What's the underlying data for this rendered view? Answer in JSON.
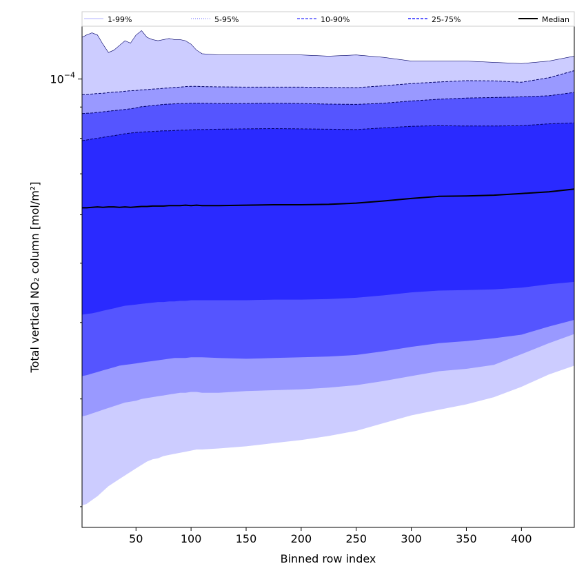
{
  "chart_data": {
    "type": "area",
    "title": "",
    "xlabel": "Binned row index",
    "ylabel": "Total vertical NO₂ column [mol/m²]",
    "x_range": [
      1,
      448
    ],
    "y_scale": "log",
    "y_range": [
      1.85e-05,
      0.000122
    ],
    "x_ticks": [
      50,
      100,
      150,
      200,
      250,
      300,
      350,
      400
    ],
    "x_tick_labels": [
      "50",
      "100",
      "150",
      "200",
      "250",
      "300",
      "350",
      "400"
    ],
    "y_tick_label": "10",
    "y_tick_exponent": "−4",
    "y_tick_value": 0.0001,
    "grid": false,
    "legend_position": "top",
    "x": [
      1,
      5,
      10,
      15,
      20,
      25,
      30,
      35,
      40,
      45,
      50,
      55,
      60,
      65,
      70,
      75,
      80,
      85,
      90,
      95,
      100,
      105,
      110,
      125,
      150,
      175,
      200,
      225,
      250,
      275,
      300,
      325,
      350,
      375,
      400,
      425,
      448
    ],
    "series": [
      {
        "name": "1-99%",
        "color": "#ccccff",
        "upper": [
          0.000117,
          0.000118,
          0.000119,
          0.000118,
          0.000114,
          0.0001105,
          0.0001115,
          0.0001135,
          0.0001155,
          0.0001145,
          0.000118,
          0.00012,
          0.000117,
          0.000116,
          0.0001155,
          0.000116,
          0.0001165,
          0.000116,
          0.000116,
          0.0001155,
          0.000114,
          0.0001115,
          0.00011,
          0.0001095,
          0.0001095,
          0.0001095,
          0.0001095,
          0.000109,
          0.0001095,
          0.0001085,
          0.000107,
          0.000107,
          0.000107,
          0.0001065,
          0.000106,
          0.000107,
          0.000109
        ],
        "lower": [
          2.01e-05,
          2.02e-05,
          2.05e-05,
          2.08e-05,
          2.12e-05,
          2.16e-05,
          2.19e-05,
          2.22e-05,
          2.25e-05,
          2.28e-05,
          2.31e-05,
          2.34e-05,
          2.37e-05,
          2.39e-05,
          2.4e-05,
          2.42e-05,
          2.43e-05,
          2.44e-05,
          2.45e-05,
          2.46e-05,
          2.47e-05,
          2.48e-05,
          2.48e-05,
          2.49e-05,
          2.51e-05,
          2.54e-05,
          2.57e-05,
          2.61e-05,
          2.66e-05,
          2.74e-05,
          2.82e-05,
          2.88e-05,
          2.94e-05,
          3.02e-05,
          3.14e-05,
          3.29e-05,
          3.4e-05
        ]
      },
      {
        "name": "5-95%",
        "color": "#9999ff",
        "upper": [
          9.43e-05,
          9.43e-05,
          9.45e-05,
          9.47e-05,
          9.48e-05,
          9.5e-05,
          9.52e-05,
          9.53e-05,
          9.55e-05,
          9.57e-05,
          9.58e-05,
          9.6e-05,
          9.61e-05,
          9.63e-05,
          9.64e-05,
          9.66e-05,
          9.67e-05,
          9.69e-05,
          9.7e-05,
          9.72e-05,
          9.73e-05,
          9.73e-05,
          9.72e-05,
          9.71e-05,
          9.7e-05,
          9.7e-05,
          9.7e-05,
          9.69e-05,
          9.68e-05,
          9.75e-05,
          9.83e-05,
          9.89e-05,
          9.94e-05,
          9.93e-05,
          9.88e-05,
          0.0001005,
          0.0001032
        ],
        "lower": [
          2.81e-05,
          2.82e-05,
          2.84e-05,
          2.86e-05,
          2.88e-05,
          2.9e-05,
          2.92e-05,
          2.94e-05,
          2.96e-05,
          2.97e-05,
          2.98e-05,
          3e-05,
          3.01e-05,
          3.02e-05,
          3.03e-05,
          3.04e-05,
          3.05e-05,
          3.06e-05,
          3.07e-05,
          3.07e-05,
          3.08e-05,
          3.08e-05,
          3.07e-05,
          3.07e-05,
          3.09e-05,
          3.1e-05,
          3.11e-05,
          3.13e-05,
          3.16e-05,
          3.21e-05,
          3.27e-05,
          3.33e-05,
          3.36e-05,
          3.41e-05,
          3.55e-05,
          3.7e-05,
          3.83e-05
        ]
      },
      {
        "name": "10-90%",
        "color": "#5555ff",
        "upper": [
          8.78e-05,
          8.79e-05,
          8.8e-05,
          8.82e-05,
          8.84e-05,
          8.86e-05,
          8.88e-05,
          8.9e-05,
          8.92e-05,
          8.94e-05,
          8.97e-05,
          9.01e-05,
          9.03e-05,
          9.05e-05,
          9.07e-05,
          9.09e-05,
          9.1e-05,
          9.11e-05,
          9.12e-05,
          9.12e-05,
          9.13e-05,
          9.13e-05,
          9.13e-05,
          9.12e-05,
          9.12e-05,
          9.13e-05,
          9.12e-05,
          9.1e-05,
          9.09e-05,
          9.13e-05,
          9.21e-05,
          9.27e-05,
          9.31e-05,
          9.33e-05,
          9.35e-05,
          9.39e-05,
          9.51e-05
        ],
        "lower": [
          3.27e-05,
          3.28e-05,
          3.3e-05,
          3.32e-05,
          3.34e-05,
          3.36e-05,
          3.38e-05,
          3.4e-05,
          3.41e-05,
          3.42e-05,
          3.43e-05,
          3.44e-05,
          3.45e-05,
          3.46e-05,
          3.47e-05,
          3.48e-05,
          3.49e-05,
          3.5e-05,
          3.5e-05,
          3.5e-05,
          3.51e-05,
          3.51e-05,
          3.51e-05,
          3.5e-05,
          3.49e-05,
          3.5e-05,
          3.51e-05,
          3.52e-05,
          3.54e-05,
          3.59e-05,
          3.65e-05,
          3.7e-05,
          3.73e-05,
          3.77e-05,
          3.82e-05,
          3.94e-05,
          4.04e-05
        ]
      },
      {
        "name": "25-75%",
        "color": "#2a2aff",
        "upper": [
          7.93e-05,
          7.95e-05,
          7.98e-05,
          8e-05,
          8.03e-05,
          8.06e-05,
          8.08e-05,
          8.11e-05,
          8.14e-05,
          8.16e-05,
          8.18e-05,
          8.19e-05,
          8.2e-05,
          8.21e-05,
          8.22e-05,
          8.23e-05,
          8.23e-05,
          8.24e-05,
          8.25e-05,
          8.25e-05,
          8.26e-05,
          8.27e-05,
          8.27e-05,
          8.28e-05,
          8.29e-05,
          8.3e-05,
          8.29e-05,
          8.28e-05,
          8.27e-05,
          8.32e-05,
          8.37e-05,
          8.39e-05,
          8.38e-05,
          8.38e-05,
          8.39e-05,
          8.45e-05,
          8.48e-05
        ],
        "lower": [
          4.12e-05,
          4.13e-05,
          4.14e-05,
          4.16e-05,
          4.18e-05,
          4.2e-05,
          4.22e-05,
          4.24e-05,
          4.26e-05,
          4.27e-05,
          4.28e-05,
          4.29e-05,
          4.3e-05,
          4.31e-05,
          4.32e-05,
          4.32e-05,
          4.33e-05,
          4.33e-05,
          4.34e-05,
          4.34e-05,
          4.35e-05,
          4.35e-05,
          4.35e-05,
          4.35e-05,
          4.35e-05,
          4.36e-05,
          4.36e-05,
          4.37e-05,
          4.39e-05,
          4.43e-05,
          4.48e-05,
          4.51e-05,
          4.52e-05,
          4.53e-05,
          4.56e-05,
          4.62e-05,
          4.66e-05
        ]
      }
    ],
    "median": {
      "name": "Median",
      "color": "#000000",
      "values": [
        6.16e-05,
        6.16e-05,
        6.17e-05,
        6.18e-05,
        6.17e-05,
        6.18e-05,
        6.18e-05,
        6.17e-05,
        6.18e-05,
        6.17e-05,
        6.18e-05,
        6.19e-05,
        6.19e-05,
        6.2e-05,
        6.2e-05,
        6.2e-05,
        6.21e-05,
        6.21e-05,
        6.21e-05,
        6.22e-05,
        6.21e-05,
        6.22e-05,
        6.21e-05,
        6.21e-05,
        6.22e-05,
        6.23e-05,
        6.23e-05,
        6.24e-05,
        6.27e-05,
        6.32e-05,
        6.38e-05,
        6.43e-05,
        6.44e-05,
        6.46e-05,
        6.5e-05,
        6.54e-05,
        6.61e-05
      ]
    }
  },
  "legend": {
    "items": [
      {
        "label": "1-99%",
        "color": "#ccccff",
        "dash": "solid"
      },
      {
        "label": "5-95%",
        "color": "#9999ff",
        "dash": "dotted"
      },
      {
        "label": "10-90%",
        "color": "#5555ff",
        "dash": "dashed"
      },
      {
        "label": "25-75%",
        "color": "#2a2aff",
        "dash": "dashed"
      },
      {
        "label": "Median",
        "color": "#000000",
        "dash": "solid"
      }
    ]
  }
}
